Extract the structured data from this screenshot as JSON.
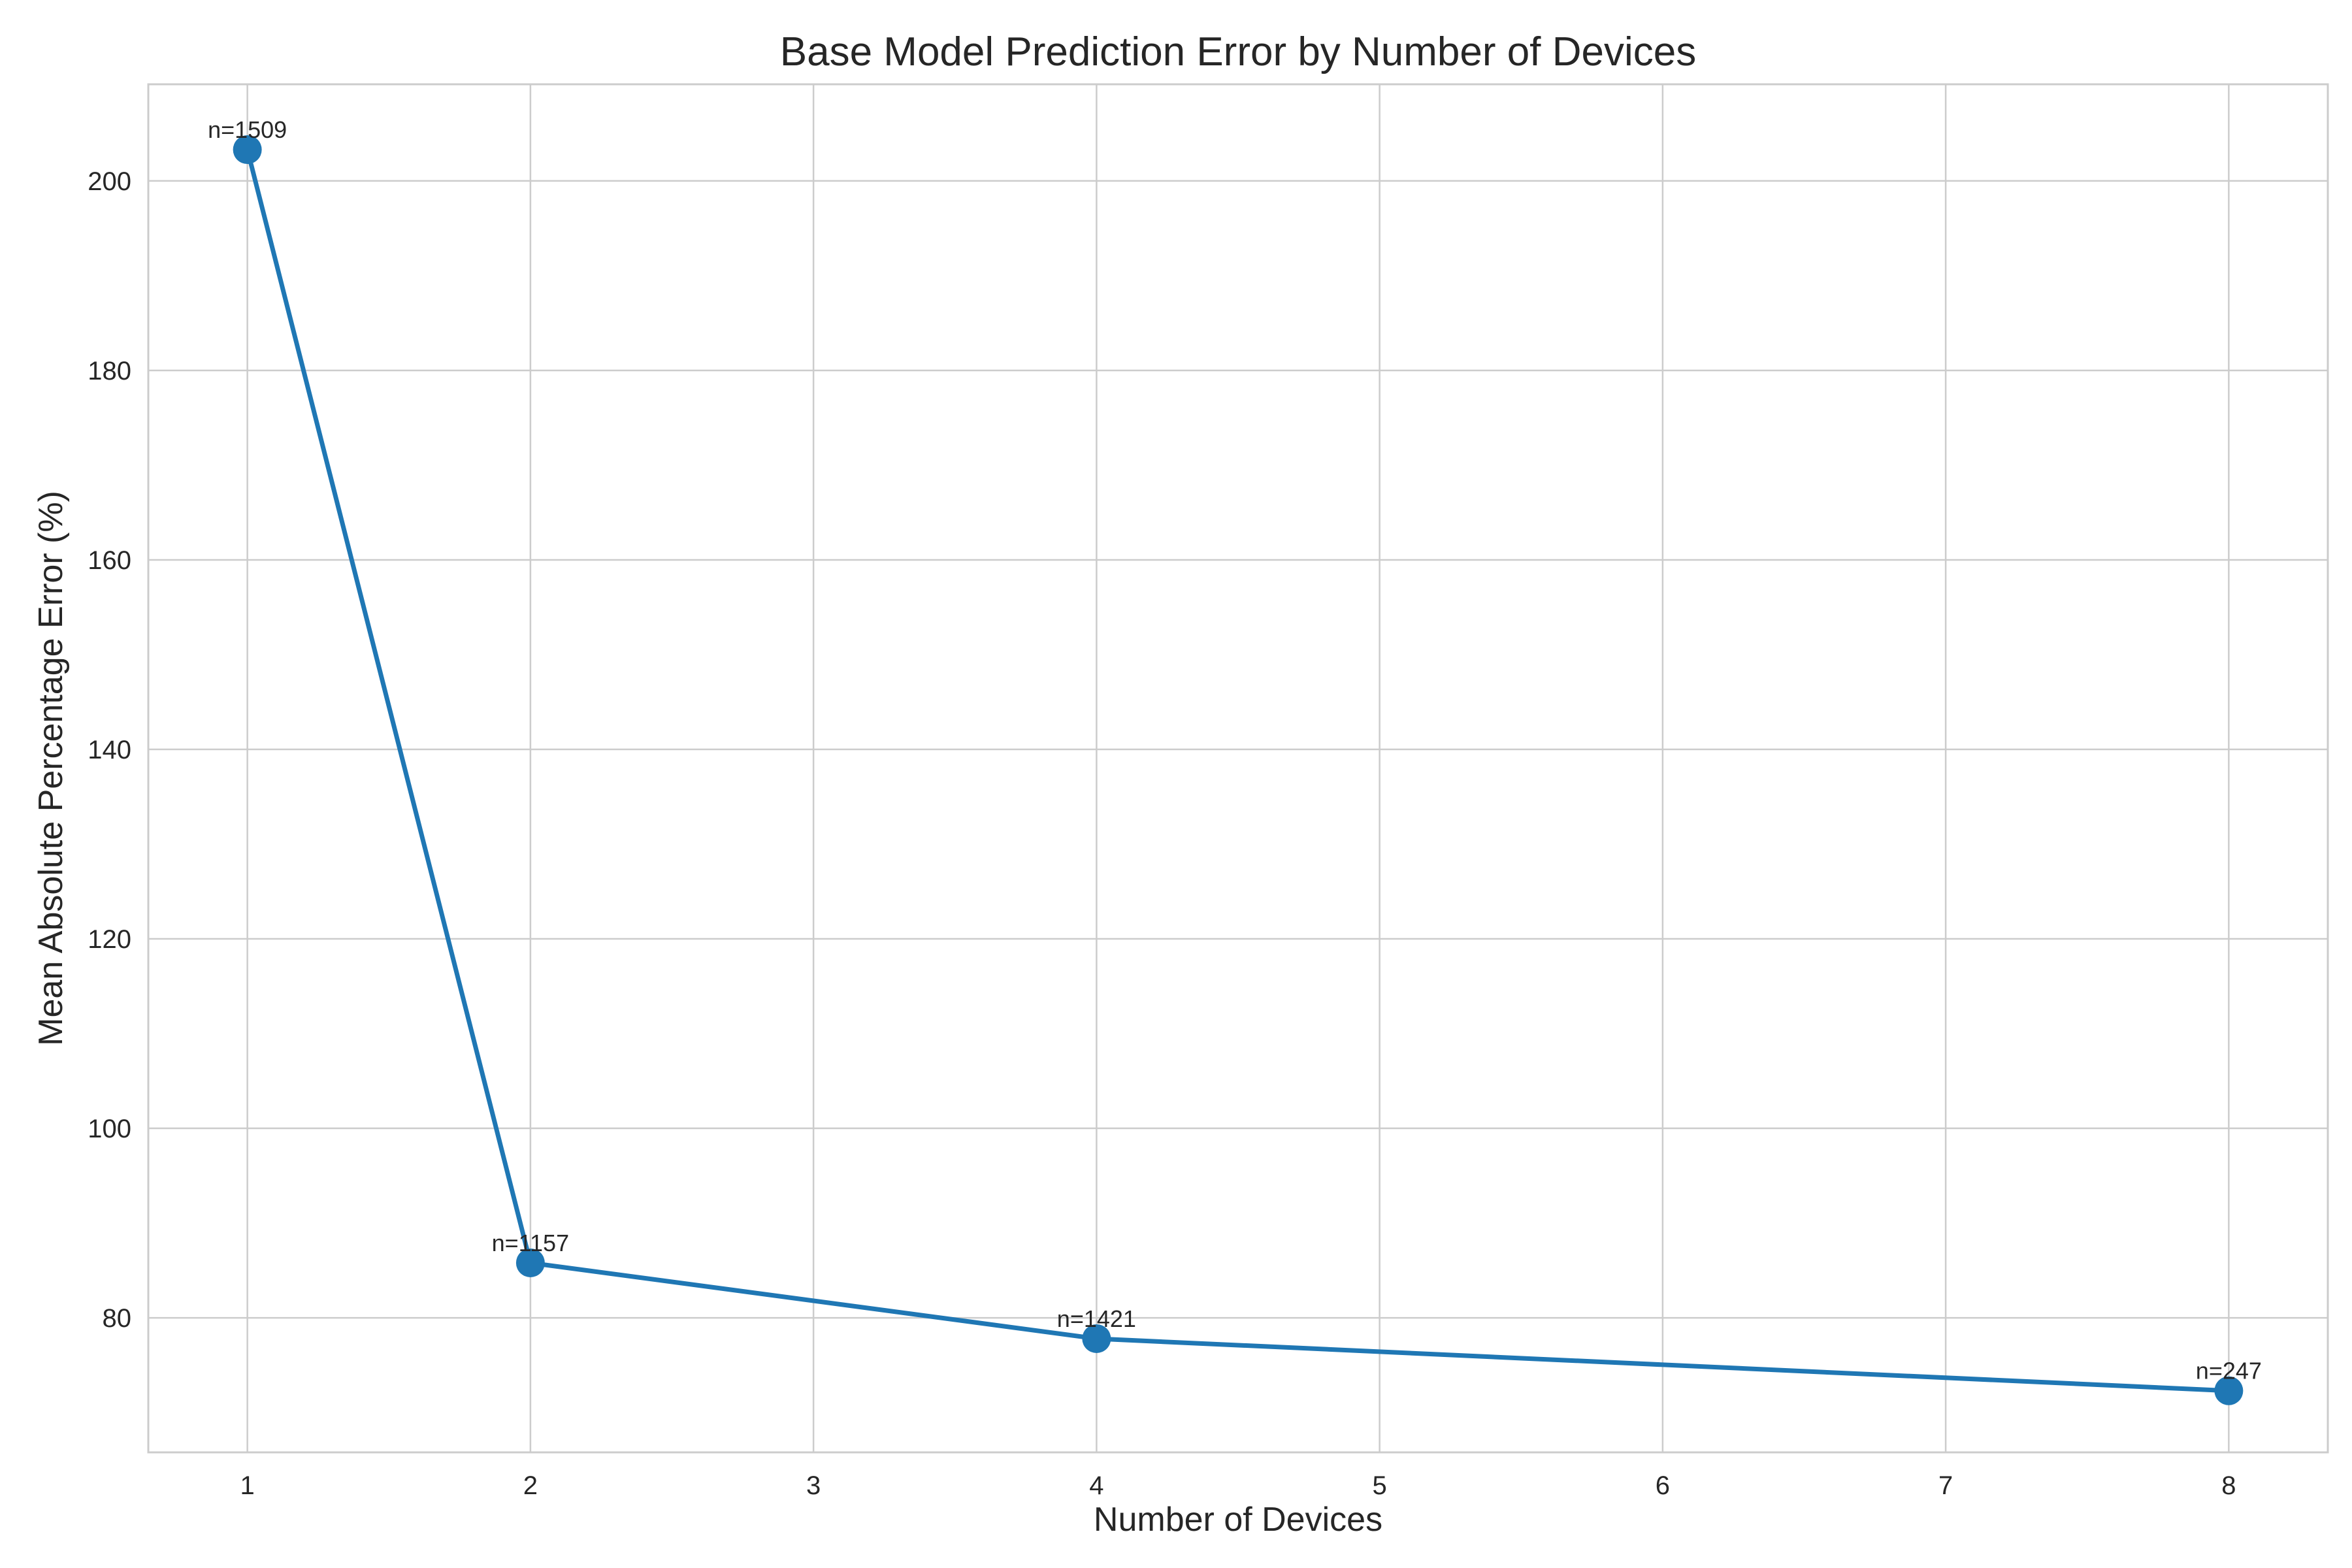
{
  "chart_data": {
    "type": "line",
    "title": "Base Model Prediction Error by Number of Devices",
    "xlabel": "Number of Devices",
    "ylabel": "Mean Absolute Percentage Error (%)",
    "x": [
      1,
      2,
      4,
      8
    ],
    "y": [
      203.3,
      85.8,
      77.8,
      72.3
    ],
    "point_labels": [
      "n=1509",
      "n=1157",
      "n=1421",
      "n=247"
    ],
    "xlim": [
      0.65,
      8.35
    ],
    "ylim": [
      65.8,
      210.2
    ],
    "xticks": [
      1,
      2,
      3,
      4,
      5,
      6,
      7,
      8
    ],
    "yticks": [
      80,
      100,
      120,
      140,
      160,
      180,
      200
    ],
    "grid": true,
    "legend": "none",
    "line_color": "#1f77b4",
    "grid_color": "#cccccc",
    "text_color": "#262626"
  }
}
